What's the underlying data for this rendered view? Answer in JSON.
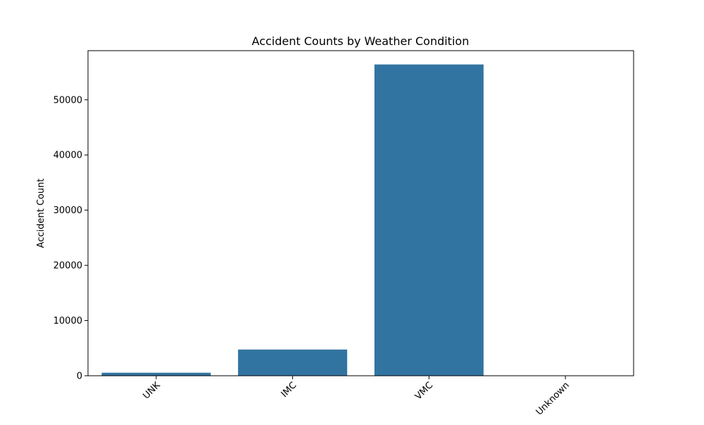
{
  "chart_data": {
    "type": "bar",
    "title": "Accident Counts by Weather Condition",
    "xlabel": "",
    "ylabel": "Accident Count",
    "categories": [
      "UNK",
      "IMC",
      "VMC",
      "Unknown"
    ],
    "values": [
      550,
      4750,
      56400,
      2
    ],
    "ylim": [
      0,
      58900
    ],
    "yticks": [
      0,
      10000,
      20000,
      30000,
      40000,
      50000
    ],
    "ytick_labels": [
      "0",
      "10000",
      "20000",
      "30000",
      "40000",
      "50000"
    ],
    "bar_color": "#3274a1",
    "grid": false,
    "legend": "none"
  }
}
